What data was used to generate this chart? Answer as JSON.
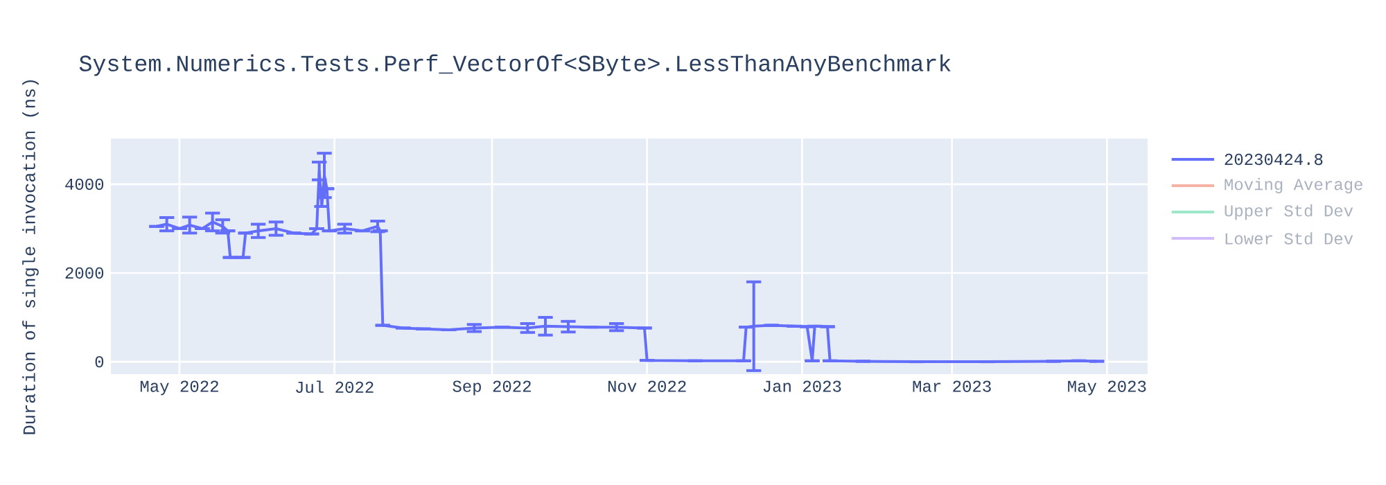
{
  "chart_data": {
    "type": "line",
    "title": "System.Numerics.Tests.Perf_VectorOf<SByte>.LessThanAnyBenchmark",
    "ylabel": "Duration of single invocation (ns)",
    "xlim": [
      "2022-04-04",
      "2023-05-17"
    ],
    "ylim": [
      -280,
      5030
    ],
    "xticks": [
      {
        "value": "2022-05-01",
        "label": "May 2022"
      },
      {
        "value": "2022-07-01",
        "label": "Jul 2022"
      },
      {
        "value": "2022-09-01",
        "label": "Sep 2022"
      },
      {
        "value": "2022-11-01",
        "label": "Nov 2022"
      },
      {
        "value": "2023-01-01",
        "label": "Jan 2023"
      },
      {
        "value": "2023-03-01",
        "label": "Mar 2023"
      },
      {
        "value": "2023-05-01",
        "label": "May 2023"
      }
    ],
    "yticks": [
      0,
      2000,
      4000
    ],
    "grid": true,
    "legend": "top right",
    "marker": "none",
    "series": [
      {
        "name": "20230424.8",
        "color": "#636efa",
        "x": [
          "2022-04-22",
          "2022-04-26",
          "2022-05-01",
          "2022-05-05",
          "2022-05-10",
          "2022-05-14",
          "2022-05-18",
          "2022-05-20",
          "2022-05-21",
          "2022-05-26",
          "2022-05-27",
          "2022-06-01",
          "2022-06-08",
          "2022-06-15",
          "2022-06-22",
          "2022-06-24",
          "2022-06-25",
          "2022-06-26",
          "2022-06-27",
          "2022-06-28",
          "2022-06-29",
          "2022-07-05",
          "2022-07-12",
          "2022-07-18",
          "2022-07-19",
          "2022-07-20",
          "2022-07-28",
          "2022-08-05",
          "2022-08-15",
          "2022-08-25",
          "2022-09-05",
          "2022-09-15",
          "2022-09-22",
          "2022-10-01",
          "2022-10-10",
          "2022-10-20",
          "2022-10-31",
          "2022-11-01",
          "2022-11-20",
          "2022-12-09",
          "2022-12-10",
          "2022-12-13",
          "2022-12-20",
          "2022-12-29",
          "2023-01-03",
          "2023-01-05",
          "2023-01-06",
          "2023-01-11",
          "2023-01-12",
          "2023-01-25",
          "2023-02-15",
          "2023-03-15",
          "2023-04-10",
          "2023-04-20",
          "2023-04-27"
        ],
        "values": [
          3050,
          3100,
          3000,
          3080,
          3000,
          3150,
          3050,
          2950,
          2350,
          2350,
          2900,
          2950,
          3000,
          2900,
          2880,
          3000,
          4300,
          3500,
          4200,
          3900,
          2950,
          3000,
          2950,
          3050,
          2950,
          820,
          760,
          740,
          720,
          760,
          780,
          760,
          800,
          790,
          780,
          780,
          760,
          30,
          20,
          20,
          780,
          800,
          820,
          800,
          790,
          20,
          800,
          790,
          20,
          10,
          0,
          0,
          10,
          20,
          10
        ],
        "errors": [
          null,
          150,
          null,
          180,
          null,
          200,
          150,
          null,
          null,
          null,
          null,
          150,
          150,
          null,
          null,
          null,
          200,
          null,
          500,
          null,
          null,
          100,
          null,
          120,
          null,
          null,
          null,
          null,
          null,
          80,
          null,
          100,
          200,
          120,
          null,
          80,
          null,
          null,
          null,
          null,
          null,
          1000,
          null,
          null,
          null,
          null,
          null,
          null,
          null,
          null,
          null,
          null,
          null,
          null,
          null
        ]
      },
      {
        "name": "Moving Average",
        "color": "#f6b3a4"
      },
      {
        "name": "Upper Std Dev",
        "color": "#9de8cb"
      },
      {
        "name": "Lower Std Dev",
        "color": "#d3bcfb"
      }
    ]
  }
}
